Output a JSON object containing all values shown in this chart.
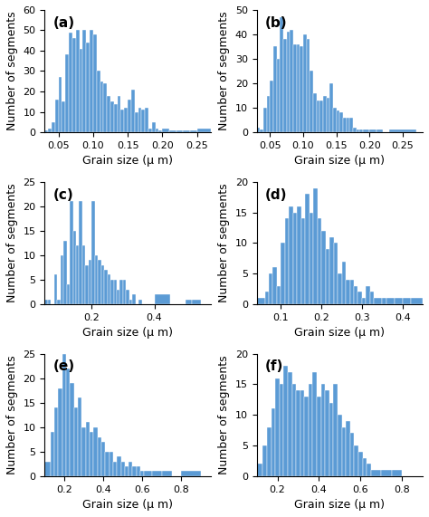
{
  "panels": [
    {
      "label": "(a)",
      "xlabel": "Grain size (μ m)",
      "ylabel": "Number of segments",
      "ylim": [
        0,
        60
      ],
      "yticks": [
        0,
        10,
        20,
        30,
        40,
        50,
        60
      ],
      "xlim": [
        0.03,
        0.27
      ],
      "bar_color": "#5b9bd5",
      "bin_edges": [
        0.03,
        0.035,
        0.04,
        0.045,
        0.05,
        0.055,
        0.06,
        0.065,
        0.07,
        0.075,
        0.08,
        0.085,
        0.09,
        0.095,
        0.1,
        0.105,
        0.11,
        0.115,
        0.12,
        0.125,
        0.13,
        0.135,
        0.14,
        0.145,
        0.15,
        0.155,
        0.16,
        0.165,
        0.17,
        0.175,
        0.18,
        0.185,
        0.19,
        0.195,
        0.2,
        0.21,
        0.22,
        0.23,
        0.24,
        0.25,
        0.27
      ],
      "counts": [
        1,
        2,
        5,
        16,
        27,
        15,
        38,
        49,
        46,
        50,
        41,
        50,
        44,
        50,
        48,
        30,
        25,
        24,
        18,
        15,
        14,
        18,
        11,
        12,
        16,
        21,
        10,
        12,
        11,
        12,
        2,
        5,
        2,
        1,
        2,
        1,
        1,
        1,
        1,
        2
      ]
    },
    {
      "label": "(b)",
      "xlabel": "Grain size (μ m)",
      "ylabel": "Number of segments",
      "ylim": [
        0,
        50
      ],
      "yticks": [
        0,
        10,
        20,
        30,
        40,
        50
      ],
      "xlim": [
        0.03,
        0.28
      ],
      "bar_color": "#5b9bd5",
      "bin_edges": [
        0.03,
        0.035,
        0.04,
        0.045,
        0.05,
        0.055,
        0.06,
        0.065,
        0.07,
        0.075,
        0.08,
        0.085,
        0.09,
        0.095,
        0.1,
        0.105,
        0.11,
        0.115,
        0.12,
        0.125,
        0.13,
        0.135,
        0.14,
        0.145,
        0.15,
        0.155,
        0.16,
        0.165,
        0.17,
        0.175,
        0.18,
        0.185,
        0.19,
        0.2,
        0.21,
        0.22,
        0.23,
        0.27
      ],
      "counts": [
        2,
        1,
        10,
        15,
        21,
        35,
        30,
        47,
        38,
        41,
        42,
        36,
        36,
        35,
        40,
        38,
        25,
        16,
        13,
        13,
        15,
        14,
        20,
        10,
        9,
        8,
        6,
        6,
        6,
        2,
        1,
        1,
        1,
        1,
        1,
        0,
        1
      ]
    },
    {
      "label": "(c)",
      "xlabel": "Grain size (μ m)",
      "ylabel": "Number of segments",
      "ylim": [
        0,
        25
      ],
      "yticks": [
        0,
        5,
        10,
        15,
        20,
        25
      ],
      "xlim": [
        0.05,
        0.58
      ],
      "bar_color": "#5b9bd5",
      "bin_edges": [
        0.05,
        0.06,
        0.07,
        0.08,
        0.09,
        0.1,
        0.11,
        0.12,
        0.13,
        0.14,
        0.15,
        0.16,
        0.17,
        0.18,
        0.19,
        0.2,
        0.21,
        0.22,
        0.23,
        0.24,
        0.25,
        0.26,
        0.27,
        0.28,
        0.29,
        0.3,
        0.31,
        0.32,
        0.33,
        0.34,
        0.35,
        0.36,
        0.38,
        0.4,
        0.45,
        0.5,
        0.52,
        0.55
      ],
      "counts": [
        1,
        1,
        0,
        6,
        1,
        10,
        13,
        4,
        21,
        15,
        12,
        21,
        12,
        8,
        9,
        21,
        10,
        9,
        8,
        7,
        6,
        5,
        5,
        3,
        5,
        5,
        3,
        1,
        2,
        0,
        1,
        0,
        0,
        2,
        0,
        1,
        1
      ]
    },
    {
      "label": "(d)",
      "xlabel": "Grain size (μ m)",
      "ylabel": "Number of segments",
      "ylim": [
        0,
        20
      ],
      "yticks": [
        0,
        5,
        10,
        15,
        20
      ],
      "xlim": [
        0.04,
        0.45
      ],
      "bar_color": "#5b9bd5",
      "bin_edges": [
        0.04,
        0.06,
        0.07,
        0.08,
        0.09,
        0.1,
        0.11,
        0.12,
        0.13,
        0.14,
        0.15,
        0.16,
        0.17,
        0.18,
        0.19,
        0.2,
        0.21,
        0.22,
        0.23,
        0.24,
        0.25,
        0.26,
        0.27,
        0.28,
        0.29,
        0.3,
        0.31,
        0.32,
        0.33,
        0.35,
        0.36,
        0.38,
        0.4,
        0.42,
        0.45
      ],
      "counts": [
        1,
        2,
        5,
        6,
        3,
        10,
        14,
        16,
        15,
        16,
        14,
        18,
        15,
        19,
        14,
        12,
        9,
        11,
        10,
        5,
        7,
        4,
        4,
        3,
        2,
        1,
        3,
        2,
        1,
        1,
        1,
        1,
        1,
        1
      ]
    },
    {
      "label": "(e)",
      "xlabel": "Grain size (μ m)",
      "ylabel": "Number of segments",
      "ylim": [
        0,
        25
      ],
      "yticks": [
        0,
        5,
        10,
        15,
        20,
        25
      ],
      "xlim": [
        0.1,
        0.95
      ],
      "bar_color": "#5b9bd5",
      "bin_edges": [
        0.1,
        0.13,
        0.15,
        0.17,
        0.19,
        0.21,
        0.23,
        0.25,
        0.27,
        0.29,
        0.31,
        0.33,
        0.35,
        0.37,
        0.39,
        0.41,
        0.43,
        0.45,
        0.47,
        0.49,
        0.51,
        0.53,
        0.55,
        0.57,
        0.59,
        0.61,
        0.65,
        0.7,
        0.75,
        0.8,
        0.9
      ],
      "counts": [
        3,
        9,
        14,
        18,
        25,
        22,
        19,
        14,
        16,
        10,
        11,
        9,
        10,
        8,
        7,
        5,
        5,
        3,
        4,
        3,
        2,
        3,
        2,
        2,
        1,
        1,
        1,
        1,
        0,
        1
      ]
    },
    {
      "label": "(f)",
      "xlabel": "Grain size (μ m)",
      "ylabel": "Number of segments",
      "ylim": [
        0,
        20
      ],
      "yticks": [
        0,
        5,
        10,
        15,
        20
      ],
      "xlim": [
        0.1,
        0.9
      ],
      "bar_color": "#5b9bd5",
      "bin_edges": [
        0.1,
        0.13,
        0.15,
        0.17,
        0.19,
        0.21,
        0.23,
        0.25,
        0.27,
        0.29,
        0.31,
        0.33,
        0.35,
        0.37,
        0.39,
        0.41,
        0.43,
        0.45,
        0.47,
        0.49,
        0.51,
        0.53,
        0.55,
        0.57,
        0.59,
        0.61,
        0.63,
        0.65,
        0.7,
        0.75,
        0.8,
        0.9
      ],
      "counts": [
        2,
        5,
        8,
        11,
        16,
        15,
        18,
        17,
        15,
        14,
        14,
        13,
        15,
        17,
        13,
        15,
        14,
        12,
        15,
        10,
        8,
        9,
        7,
        5,
        4,
        3,
        2,
        1,
        1,
        1,
        0
      ]
    }
  ],
  "fig_bg": "#ffffff",
  "label_fontsize": 9,
  "tick_fontsize": 8,
  "panel_label_fontsize": 11
}
